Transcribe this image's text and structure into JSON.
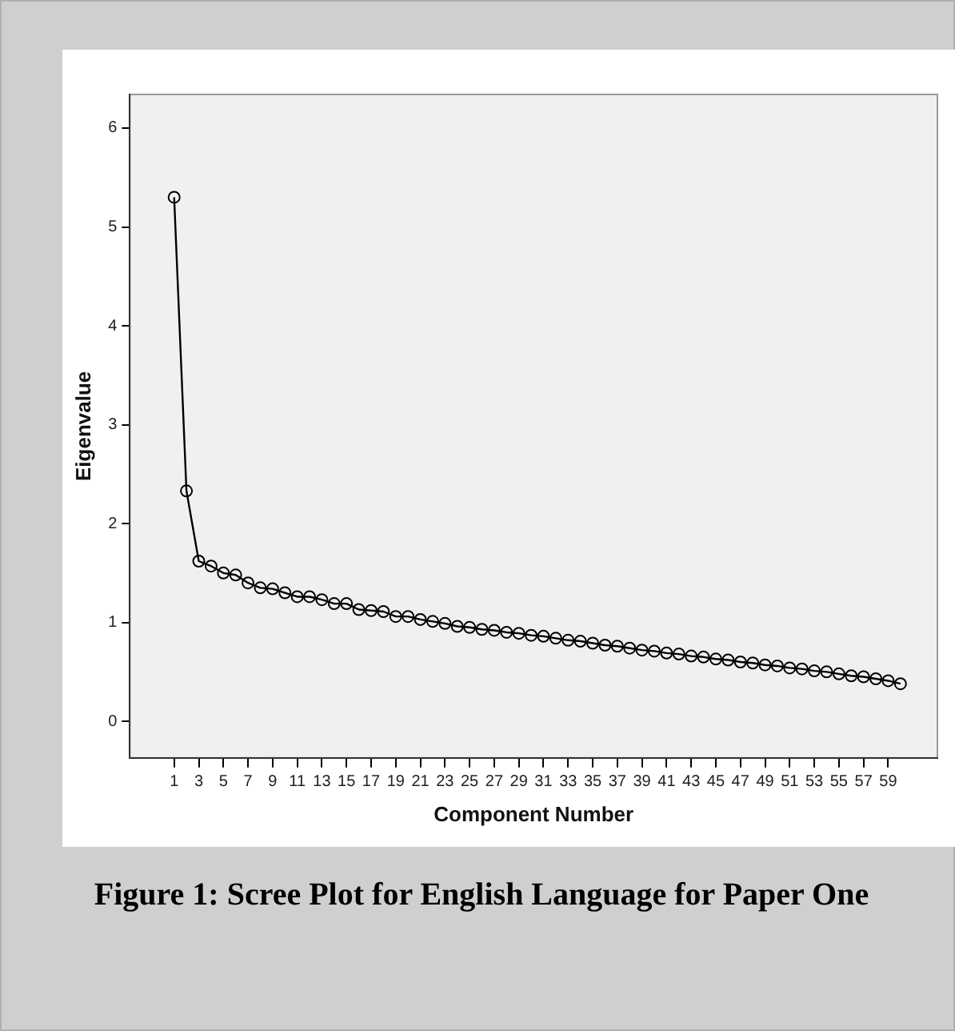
{
  "chart_data": {
    "type": "line",
    "xlabel": "Component Number",
    "ylabel": "Eigenvalue",
    "x": [
      1,
      2,
      3,
      4,
      5,
      6,
      7,
      8,
      9,
      10,
      11,
      12,
      13,
      14,
      15,
      16,
      17,
      18,
      19,
      20,
      21,
      22,
      23,
      24,
      25,
      26,
      27,
      28,
      29,
      30,
      31,
      32,
      33,
      34,
      35,
      36,
      37,
      38,
      39,
      40,
      41,
      42,
      43,
      44,
      45,
      46,
      47,
      48,
      49,
      50,
      51,
      52,
      53,
      54,
      55,
      56,
      57,
      58,
      59,
      60
    ],
    "series": [
      {
        "color": "#000000",
        "values": [
          5.3,
          2.33,
          1.62,
          1.57,
          1.5,
          1.48,
          1.4,
          1.35,
          1.34,
          1.3,
          1.26,
          1.26,
          1.23,
          1.19,
          1.19,
          1.13,
          1.12,
          1.11,
          1.06,
          1.06,
          1.03,
          1.01,
          0.99,
          0.96,
          0.95,
          0.93,
          0.92,
          0.9,
          0.89,
          0.87,
          0.86,
          0.84,
          0.82,
          0.81,
          0.79,
          0.77,
          0.76,
          0.74,
          0.72,
          0.71,
          0.69,
          0.68,
          0.66,
          0.65,
          0.63,
          0.62,
          0.6,
          0.59,
          0.57,
          0.56,
          0.54,
          0.53,
          0.51,
          0.5,
          0.48,
          0.46,
          0.45,
          0.43,
          0.41,
          0.38
        ]
      }
    ],
    "xlim": [
      -2.6,
      63
    ],
    "xticks": [
      1,
      3,
      5,
      7,
      9,
      11,
      13,
      15,
      17,
      19,
      21,
      23,
      25,
      27,
      29,
      31,
      33,
      35,
      37,
      39,
      41,
      43,
      45,
      47,
      49,
      51,
      53,
      55,
      57,
      59
    ],
    "ylim": [
      -0.37,
      6.34
    ],
    "yticks": [
      0,
      1,
      2,
      3,
      4,
      5,
      6
    ],
    "marker": "circle",
    "line_style": "solid",
    "grid": false,
    "legend": false,
    "annotations": [
      "Figure 1: Scree Plot for English Language for Paper One"
    ]
  }
}
